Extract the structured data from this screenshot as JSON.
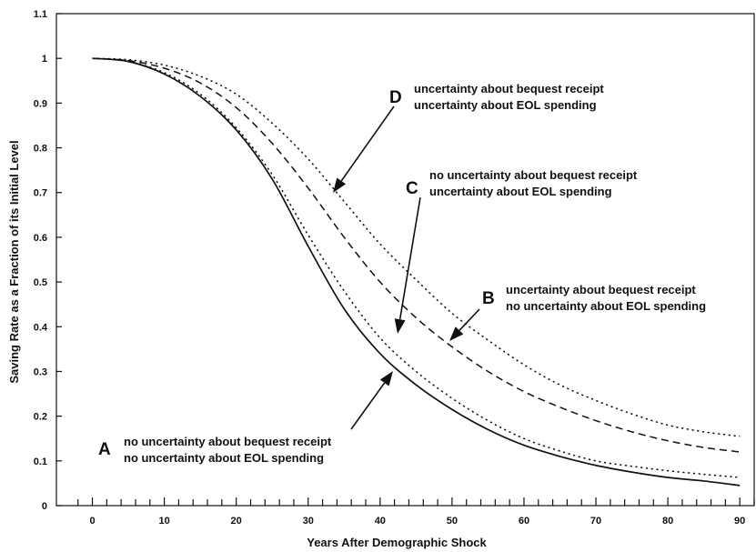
{
  "chart_data": {
    "type": "line",
    "title": "",
    "xlabel": "Years After Demographic Shock",
    "ylabel": "Saving Rate as a Fraction of its Initial Level",
    "xlim": [
      -5,
      92
    ],
    "ylim": [
      0,
      1.1
    ],
    "x_ticks": [
      0,
      10,
      20,
      30,
      40,
      50,
      60,
      70,
      80,
      90
    ],
    "y_ticks": [
      0,
      0.1,
      0.2,
      0.3,
      0.4,
      0.5,
      0.6,
      0.7,
      0.8,
      0.9,
      1,
      1.1
    ],
    "x_tick_labels": [
      "0",
      "10",
      "20",
      "30",
      "40",
      "50",
      "60",
      "70",
      "80",
      "90"
    ],
    "y_tick_labels": [
      "0",
      "0.1",
      "0.2",
      "0.3",
      "0.4",
      "0.5",
      "0.6",
      "0.7",
      "0.8",
      "0.9",
      "1",
      "1.1"
    ],
    "grid": false,
    "x": [
      0,
      5,
      10,
      15,
      20,
      25,
      30,
      35,
      40,
      45,
      50,
      55,
      60,
      65,
      70,
      75,
      80,
      85,
      90
    ],
    "series": [
      {
        "values": [
          1.0,
          0.993,
          0.965,
          0.915,
          0.84,
          0.73,
          0.58,
          0.44,
          0.34,
          0.27,
          0.215,
          0.17,
          0.135,
          0.11,
          0.09,
          0.075,
          0.063,
          0.055,
          0.045
        ],
        "style": "solid",
        "color": "#111111"
      },
      {
        "values": [
          1.0,
          0.993,
          0.968,
          0.92,
          0.845,
          0.74,
          0.605,
          0.48,
          0.375,
          0.3,
          0.24,
          0.19,
          0.15,
          0.122,
          0.1,
          0.088,
          0.078,
          0.07,
          0.063
        ],
        "style": "dotted",
        "color": "#111111"
      },
      {
        "values": [
          1.0,
          0.995,
          0.978,
          0.945,
          0.89,
          0.81,
          0.71,
          0.6,
          0.5,
          0.42,
          0.355,
          0.3,
          0.255,
          0.22,
          0.19,
          0.165,
          0.145,
          0.13,
          0.12
        ],
        "style": "dashed",
        "color": "#111111"
      },
      {
        "values": [
          1.0,
          0.997,
          0.985,
          0.96,
          0.92,
          0.855,
          0.775,
          0.68,
          0.585,
          0.505,
          0.43,
          0.37,
          0.315,
          0.27,
          0.235,
          0.205,
          0.18,
          0.165,
          0.155
        ],
        "style": "dotted",
        "color": "#111111"
      }
    ],
    "annotations": [
      {
        "letter": "A",
        "lines": [
          "no uncertainty about bequest receipt",
          "no uncertainty about EOL spending"
        ]
      },
      {
        "letter": "B",
        "lines": [
          "uncertainty about bequest receipt",
          "no uncertainty about EOL spending"
        ]
      },
      {
        "letter": "C",
        "lines": [
          "no uncertainty about bequest receipt",
          "uncertainty about EOL spending"
        ]
      },
      {
        "letter": "D",
        "lines": [
          "uncertainty about bequest receipt",
          "uncertainty about EOL spending"
        ]
      }
    ]
  }
}
